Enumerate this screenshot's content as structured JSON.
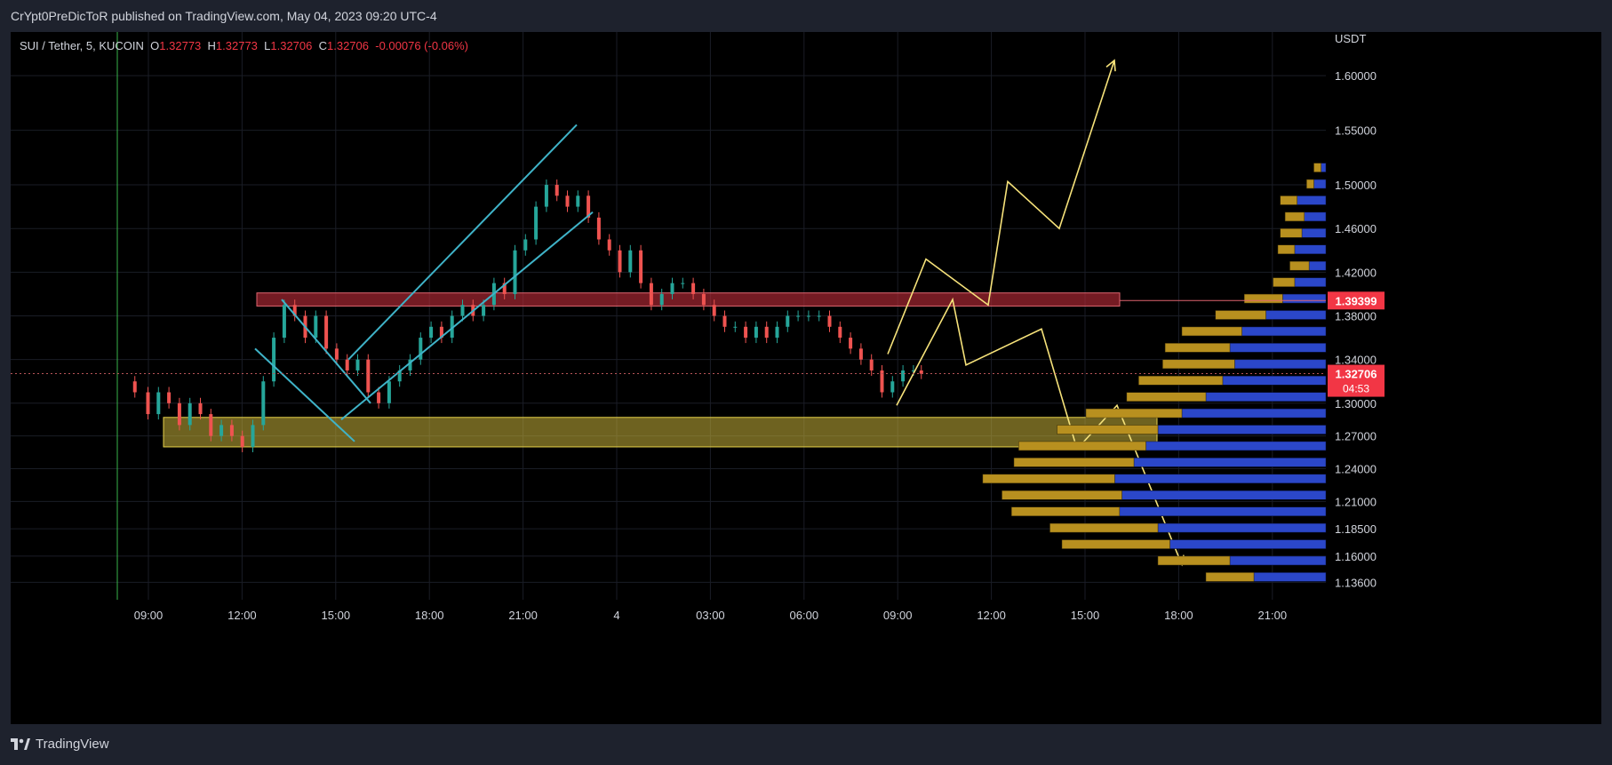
{
  "header": {
    "publish_line": "CrYpt0PreDicToR published on TradingView.com, May 04, 2023 09:20 UTC-4"
  },
  "footer": {
    "brand": "TradingView"
  },
  "legend": {
    "symbol": "SUI / Tether, 5, KUCOIN",
    "o_label": "O",
    "o": "1.32773",
    "h_label": "H",
    "h": "1.32773",
    "l_label": "L",
    "l": "1.32706",
    "c_label": "C",
    "c": "1.32706",
    "change": "-0.00076 (-0.06%)"
  },
  "colors": {
    "up": "#26a69a",
    "down": "#ef5350",
    "accent": "#f23645",
    "zone_yellow": "#c9b23a",
    "zone_red": "#b22a36",
    "trend_cyan": "#3fb3c8",
    "path_yellow": "#f6e27a",
    "vp_blue": "#2b47c9",
    "vp_gold": "#b8901f"
  },
  "chart_data": {
    "type": "candlestick",
    "currency": "USDT",
    "ylim": [
      1.12,
      1.64
    ],
    "y_ticks": [
      "1.60000",
      "1.55000",
      "1.50000",
      "1.46000",
      "1.42000",
      "1.38000",
      "1.34000",
      "1.30000",
      "1.27000",
      "1.24000",
      "1.21000",
      "1.18500",
      "1.16000",
      "1.13600"
    ],
    "x_ticks": [
      "09:00",
      "12:00",
      "15:00",
      "18:00",
      "21:00",
      "4",
      "03:00",
      "06:00",
      "09:00",
      "12:00",
      "15:00",
      "18:00",
      "21:00"
    ],
    "price_labels": [
      {
        "label": "1.39399"
      },
      {
        "label": "1.32706",
        "countdown": "04:53"
      }
    ],
    "path_points": [
      [
        0,
        1.32
      ],
      [
        5,
        1.31
      ],
      [
        10,
        1.29
      ],
      [
        14,
        1.31
      ],
      [
        18,
        1.3
      ],
      [
        22,
        1.28
      ],
      [
        26,
        1.3
      ],
      [
        30,
        1.29
      ],
      [
        34,
        1.27
      ],
      [
        38,
        1.28
      ],
      [
        42,
        1.27
      ],
      [
        46,
        1.26
      ],
      [
        50,
        1.28
      ],
      [
        54,
        1.32
      ],
      [
        58,
        1.36
      ],
      [
        62,
        1.39
      ],
      [
        66,
        1.38
      ],
      [
        70,
        1.36
      ],
      [
        74,
        1.38
      ],
      [
        78,
        1.35
      ],
      [
        82,
        1.34
      ],
      [
        86,
        1.33
      ],
      [
        90,
        1.34
      ],
      [
        94,
        1.31
      ],
      [
        98,
        1.3
      ],
      [
        102,
        1.32
      ],
      [
        106,
        1.33
      ],
      [
        110,
        1.34
      ],
      [
        114,
        1.36
      ],
      [
        118,
        1.37
      ],
      [
        122,
        1.36
      ],
      [
        126,
        1.38
      ],
      [
        130,
        1.39
      ],
      [
        134,
        1.38
      ],
      [
        138,
        1.39
      ],
      [
        142,
        1.41
      ],
      [
        146,
        1.4
      ],
      [
        150,
        1.44
      ],
      [
        154,
        1.45
      ],
      [
        158,
        1.48
      ],
      [
        162,
        1.5
      ],
      [
        166,
        1.49
      ],
      [
        170,
        1.48
      ],
      [
        174,
        1.49
      ],
      [
        178,
        1.47
      ],
      [
        182,
        1.45
      ],
      [
        186,
        1.44
      ],
      [
        190,
        1.42
      ],
      [
        194,
        1.44
      ],
      [
        198,
        1.41
      ],
      [
        202,
        1.39
      ],
      [
        206,
        1.4
      ],
      [
        210,
        1.41
      ],
      [
        214,
        1.41
      ],
      [
        218,
        1.4
      ],
      [
        222,
        1.39
      ],
      [
        226,
        1.38
      ],
      [
        230,
        1.37
      ],
      [
        234,
        1.37
      ],
      [
        238,
        1.36
      ],
      [
        242,
        1.37
      ],
      [
        246,
        1.36
      ],
      [
        250,
        1.37
      ],
      [
        254,
        1.38
      ],
      [
        258,
        1.38
      ],
      [
        262,
        1.38
      ],
      [
        266,
        1.38
      ],
      [
        270,
        1.37
      ],
      [
        274,
        1.36
      ],
      [
        278,
        1.35
      ],
      [
        282,
        1.34
      ],
      [
        286,
        1.33
      ],
      [
        290,
        1.31
      ],
      [
        294,
        1.32
      ],
      [
        298,
        1.33
      ],
      [
        302,
        1.33
      ],
      [
        305,
        1.327
      ]
    ],
    "zones": [
      {
        "name": "resistance",
        "y_low": 1.389,
        "y_high": 1.401
      },
      {
        "name": "support",
        "y_low": 1.26,
        "y_high": 1.287
      }
    ],
    "volume_profile": [
      {
        "price": 1.515,
        "down": 0.02,
        "up": 0.03
      },
      {
        "price": 1.5,
        "down": 0.05,
        "up": 0.03
      },
      {
        "price": 1.485,
        "down": 0.12,
        "up": 0.07
      },
      {
        "price": 1.47,
        "down": 0.09,
        "up": 0.08
      },
      {
        "price": 1.455,
        "down": 0.1,
        "up": 0.09
      },
      {
        "price": 1.44,
        "down": 0.13,
        "up": 0.07
      },
      {
        "price": 1.425,
        "down": 0.07,
        "up": 0.08
      },
      {
        "price": 1.41,
        "down": 0.13,
        "up": 0.09
      },
      {
        "price": 1.395,
        "down": 0.18,
        "up": 0.16
      },
      {
        "price": 1.38,
        "down": 0.25,
        "up": 0.21
      },
      {
        "price": 1.365,
        "down": 0.35,
        "up": 0.25
      },
      {
        "price": 1.35,
        "down": 0.4,
        "up": 0.27
      },
      {
        "price": 1.335,
        "down": 0.38,
        "up": 0.3
      },
      {
        "price": 1.32,
        "down": 0.43,
        "up": 0.35
      },
      {
        "price": 1.305,
        "down": 0.5,
        "up": 0.33
      },
      {
        "price": 1.29,
        "down": 0.6,
        "up": 0.4
      },
      {
        "price": 1.275,
        "down": 0.7,
        "up": 0.42
      },
      {
        "price": 1.26,
        "down": 0.75,
        "up": 0.53
      },
      {
        "price": 1.245,
        "down": 0.8,
        "up": 0.5
      },
      {
        "price": 1.23,
        "down": 0.88,
        "up": 0.55
      },
      {
        "price": 1.215,
        "down": 0.85,
        "up": 0.5
      },
      {
        "price": 1.2,
        "down": 0.86,
        "up": 0.45
      },
      {
        "price": 1.185,
        "down": 0.7,
        "up": 0.45
      },
      {
        "price": 1.17,
        "down": 0.65,
        "up": 0.45
      },
      {
        "price": 1.155,
        "down": 0.4,
        "up": 0.3
      },
      {
        "price": 1.14,
        "down": 0.3,
        "up": 0.2
      }
    ]
  }
}
